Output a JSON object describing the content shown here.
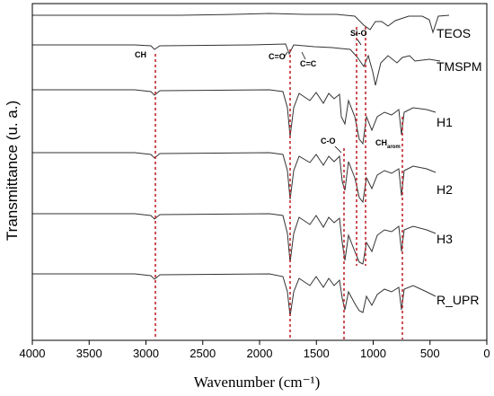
{
  "chart_data": {
    "type": "line",
    "xlabel": "Wavenumber (cm⁻¹)",
    "ylabel": "Transmittance (u. a.)",
    "xlim": [
      4000,
      0
    ],
    "x_ticks": [
      "4000",
      "3500",
      "3000",
      "2500",
      "2000",
      "1500",
      "1000",
      "500",
      "0"
    ],
    "series": [
      {
        "name": "TEOS"
      },
      {
        "name": "TMSPM"
      },
      {
        "name": "H1"
      },
      {
        "name": "H2"
      },
      {
        "name": "H3"
      },
      {
        "name": "R_UPR"
      }
    ],
    "reference_lines_cm1": [
      2930,
      1720,
      1260,
      1110,
      1070,
      725
    ],
    "annotations": [
      {
        "text": "CH",
        "x": 2930
      },
      {
        "text": "C=O",
        "x": 1720
      },
      {
        "text": "C=C",
        "x": 1630
      },
      {
        "text": "Si-O",
        "x": 1100
      },
      {
        "text": "C-O",
        "x": 1260
      },
      {
        "text": "CH",
        "sub": "arom",
        "x": 950
      }
    ]
  }
}
